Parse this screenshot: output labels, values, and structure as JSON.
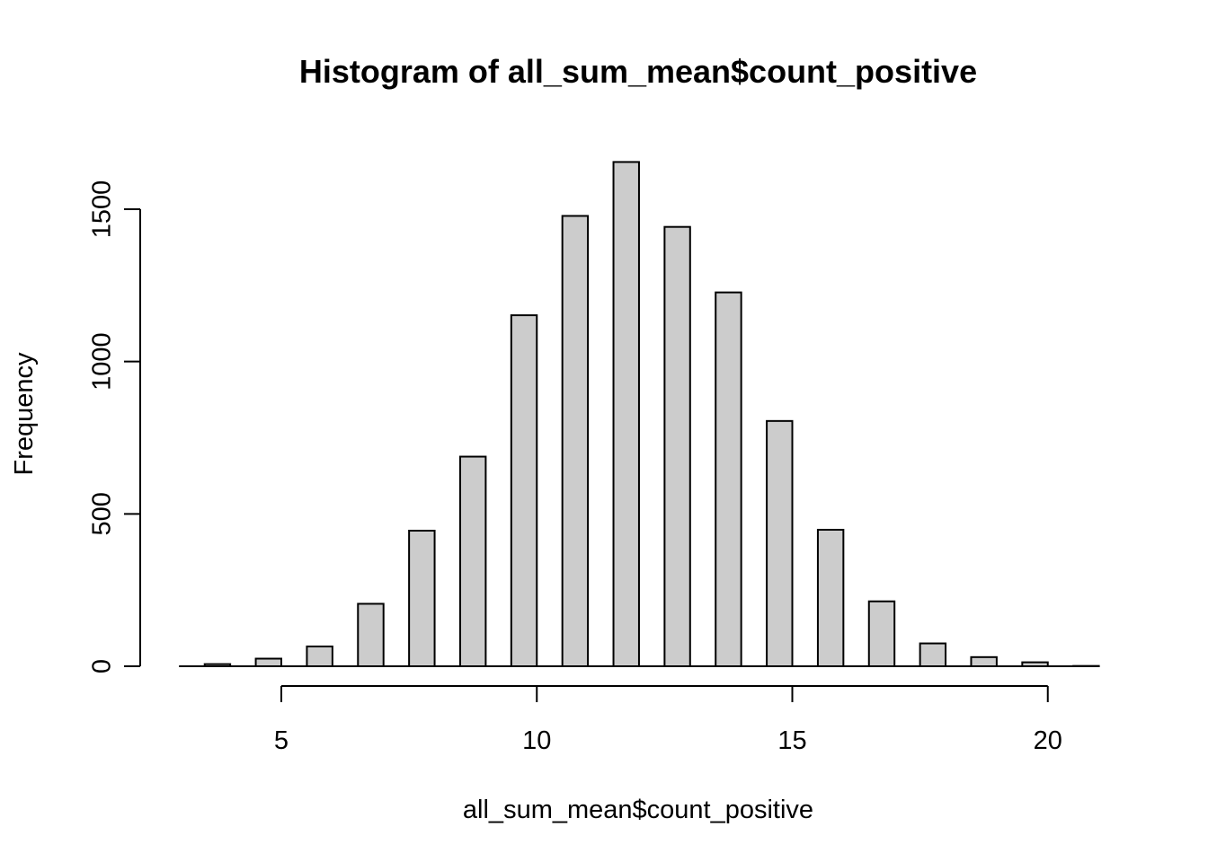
{
  "chart_data": {
    "type": "bar",
    "title": "Histogram of all_sum_mean$count_positive",
    "xlabel": "all_sum_mean$count_positive",
    "ylabel": "Frequency",
    "xlim": [
      3,
      21
    ],
    "ylim": [
      0,
      1700
    ],
    "x_ticks": [
      5,
      10,
      15,
      20
    ],
    "y_ticks": [
      0,
      500,
      1000,
      1500
    ],
    "bins": [
      {
        "x0": 3.0,
        "x1": 3.5,
        "value": 0
      },
      {
        "x0": 3.5,
        "x1": 4.0,
        "value": 7
      },
      {
        "x0": 4.5,
        "x1": 5.0,
        "value": 25
      },
      {
        "x0": 5.5,
        "x1": 6.0,
        "value": 65
      },
      {
        "x0": 6.5,
        "x1": 7.0,
        "value": 205
      },
      {
        "x0": 7.5,
        "x1": 8.0,
        "value": 445
      },
      {
        "x0": 8.5,
        "x1": 9.0,
        "value": 688
      },
      {
        "x0": 9.5,
        "x1": 10.0,
        "value": 1152
      },
      {
        "x0": 10.5,
        "x1": 11.0,
        "value": 1478
      },
      {
        "x0": 11.5,
        "x1": 12.0,
        "value": 1655
      },
      {
        "x0": 12.5,
        "x1": 13.0,
        "value": 1442
      },
      {
        "x0": 13.5,
        "x1": 14.0,
        "value": 1227
      },
      {
        "x0": 14.5,
        "x1": 15.0,
        "value": 805
      },
      {
        "x0": 15.5,
        "x1": 16.0,
        "value": 448
      },
      {
        "x0": 16.5,
        "x1": 17.0,
        "value": 213
      },
      {
        "x0": 17.5,
        "x1": 18.0,
        "value": 75
      },
      {
        "x0": 18.5,
        "x1": 19.0,
        "value": 30
      },
      {
        "x0": 19.5,
        "x1": 20.0,
        "value": 13
      },
      {
        "x0": 20.5,
        "x1": 21.0,
        "value": 1
      }
    ],
    "bar_fill": "#cccccc",
    "bar_stroke": "#000000",
    "grid": false
  }
}
